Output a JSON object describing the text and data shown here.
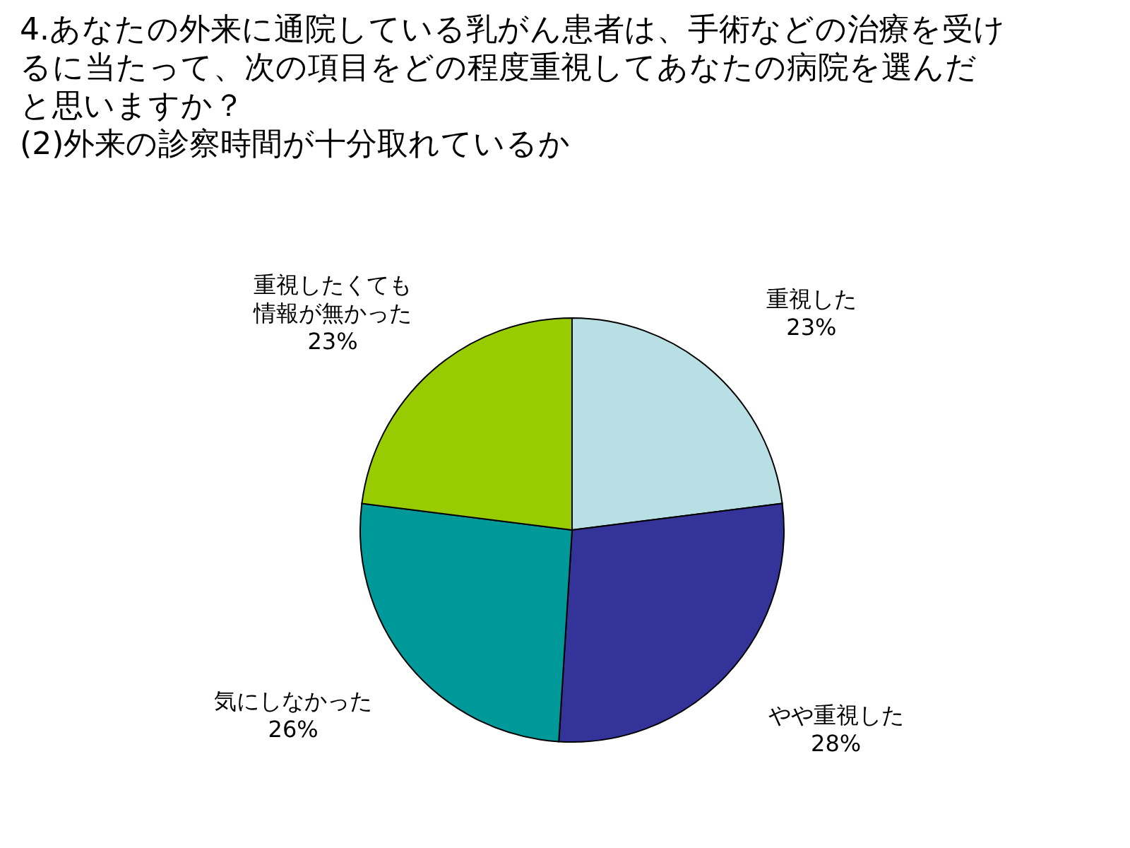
{
  "chart_data": {
    "type": "pie",
    "title": "4.あなたの外来に通院している乳がん患者は、手術などの治療を受けるに当たって、次の項目をどの程度重視してあなたの病院を選んだと思いますか？",
    "subtitle": "(2)外来の診察時間が十分取れているか",
    "categories": [
      "重視した",
      "やや重視した",
      "気にしなかった",
      "重視したくても情報が無かった"
    ],
    "values": [
      23,
      28,
      26,
      23
    ],
    "colors": [
      "#b8dfe3",
      "#333399",
      "#009999",
      "#99cc00"
    ],
    "value_labels": [
      "23%",
      "28%",
      "26%",
      "23%"
    ]
  }
}
